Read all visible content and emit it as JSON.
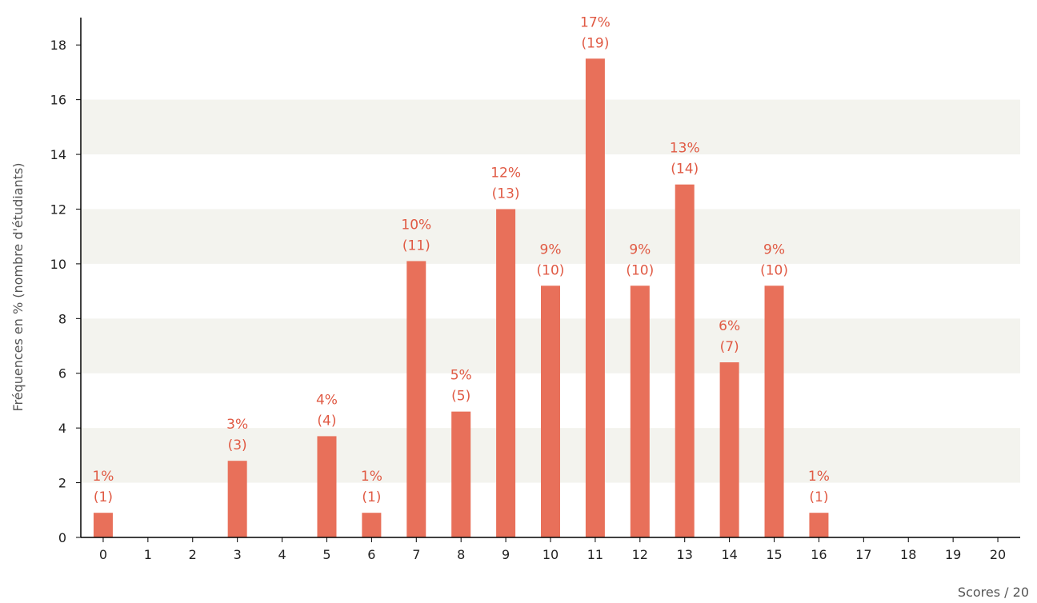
{
  "chart_data": {
    "type": "bar",
    "title": "",
    "xlabel": "Scores / 20",
    "ylabel": "Fréquences en % (nombre d'étudiants)",
    "categories": [
      "0",
      "1",
      "2",
      "3",
      "4",
      "5",
      "6",
      "7",
      "8",
      "9",
      "10",
      "11",
      "12",
      "13",
      "14",
      "15",
      "16",
      "17",
      "18",
      "19",
      "20"
    ],
    "values": [
      0.9,
      0,
      0,
      2.8,
      0,
      3.7,
      0.9,
      10.1,
      4.6,
      12.0,
      9.2,
      17.5,
      9.2,
      12.9,
      6.4,
      9.2,
      0.9,
      0,
      0,
      0,
      0
    ],
    "counts": [
      1,
      0,
      0,
      3,
      0,
      4,
      1,
      11,
      5,
      13,
      10,
      19,
      10,
      14,
      7,
      10,
      1,
      0,
      0,
      0,
      0
    ],
    "labels": [
      {
        "pct": "1%",
        "count": "(1)"
      },
      null,
      null,
      {
        "pct": "3%",
        "count": "(3)"
      },
      null,
      {
        "pct": "4%",
        "count": "(4)"
      },
      {
        "pct": "1%",
        "count": "(1)"
      },
      {
        "pct": "10%",
        "count": "(11)"
      },
      {
        "pct": "5%",
        "count": "(5)"
      },
      {
        "pct": "12%",
        "count": "(13)"
      },
      {
        "pct": "9%",
        "count": "(10)"
      },
      {
        "pct": "17%",
        "count": "(19)"
      },
      {
        "pct": "9%",
        "count": "(10)"
      },
      {
        "pct": "13%",
        "count": "(14)"
      },
      {
        "pct": "6%",
        "count": "(7)"
      },
      {
        "pct": "9%",
        "count": "(10)"
      },
      {
        "pct": "1%",
        "count": "(1)"
      },
      null,
      null,
      null,
      null
    ],
    "ylim": [
      0,
      19
    ],
    "yticks": [
      0,
      2,
      4,
      6,
      8,
      10,
      12,
      14,
      16,
      18
    ],
    "grid": "alternating horizontal bands",
    "legend": "none",
    "colors": {
      "bar": "#e8705a",
      "label": "#e05a44",
      "band": "#f3f3ee",
      "axis": "#000000"
    }
  }
}
